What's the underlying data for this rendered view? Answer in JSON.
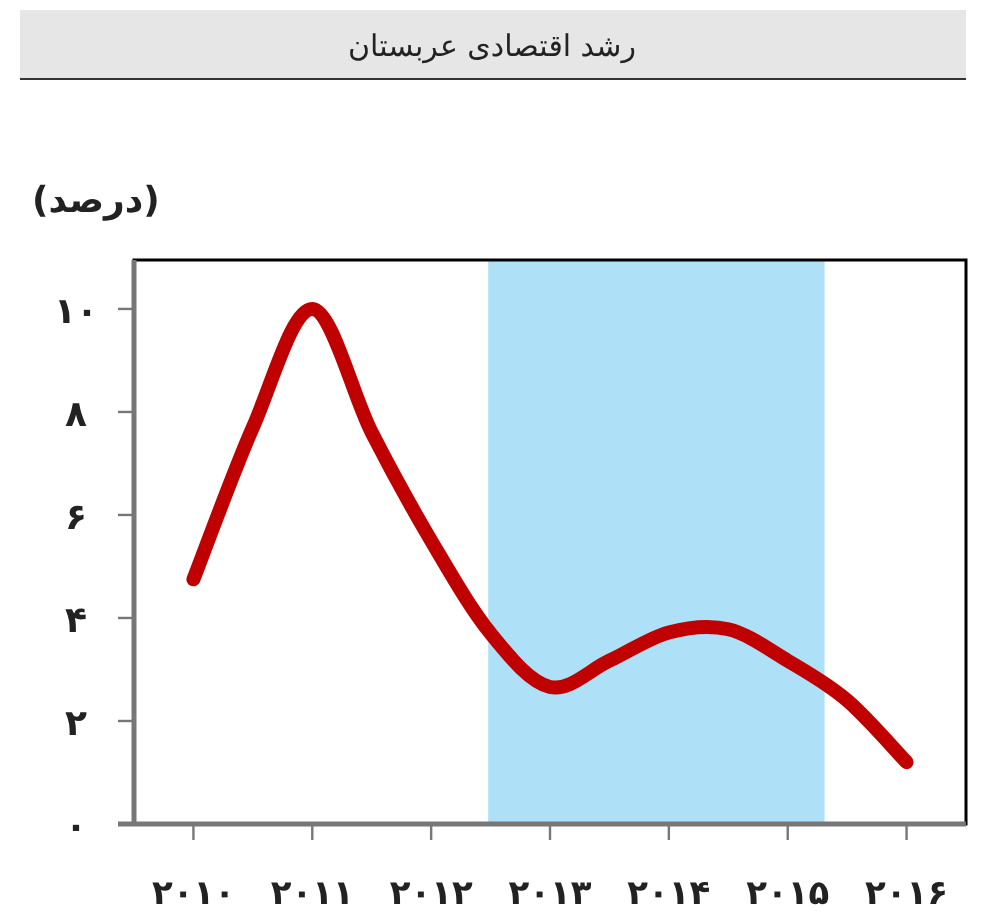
{
  "chart_data": {
    "type": "line",
    "title": "رشد اقتصادی عربستان",
    "ylabel": "(درصد)",
    "x": [
      2010,
      2010.5,
      2011,
      2011.5,
      2012,
      2012.5,
      2013,
      2013.5,
      2014,
      2014.5,
      2015,
      2015.5,
      2016
    ],
    "series": [
      {
        "color": "#c00000",
        "values": [
          4.75,
          7.7,
          10.0,
          7.6,
          5.5,
          3.7,
          2.66,
          3.17,
          3.72,
          3.78,
          3.17,
          2.4,
          1.2
        ]
      }
    ],
    "xlim": [
      2009.5,
      2016.5
    ],
    "ylim": [
      0,
      10.95
    ],
    "xticks": [
      {
        "value": 2010,
        "label": "۲۰۱۰"
      },
      {
        "value": 2011,
        "label": "۲۰۱۱"
      },
      {
        "value": 2012,
        "label": "۲۰۱۲"
      },
      {
        "value": 2013,
        "label": "۲۰۱۳"
      },
      {
        "value": 2014,
        "label": "۲۰۱۴"
      },
      {
        "value": 2015,
        "label": "۲۰۱۵"
      },
      {
        "value": 2016,
        "label": "۲۰۱۶"
      }
    ],
    "yticks": [
      {
        "value": 0,
        "label": "۰"
      },
      {
        "value": 2,
        "label": "۲"
      },
      {
        "value": 4,
        "label": "۴"
      },
      {
        "value": 6,
        "label": "۶"
      },
      {
        "value": 8,
        "label": "۸"
      },
      {
        "value": 10,
        "label": "۱۰"
      }
    ],
    "bands": [
      {
        "axis": "x",
        "from": 2012.48,
        "to": 2015.31,
        "color": "#aee0f7"
      }
    ],
    "marker": "none",
    "line_style": "solid"
  }
}
